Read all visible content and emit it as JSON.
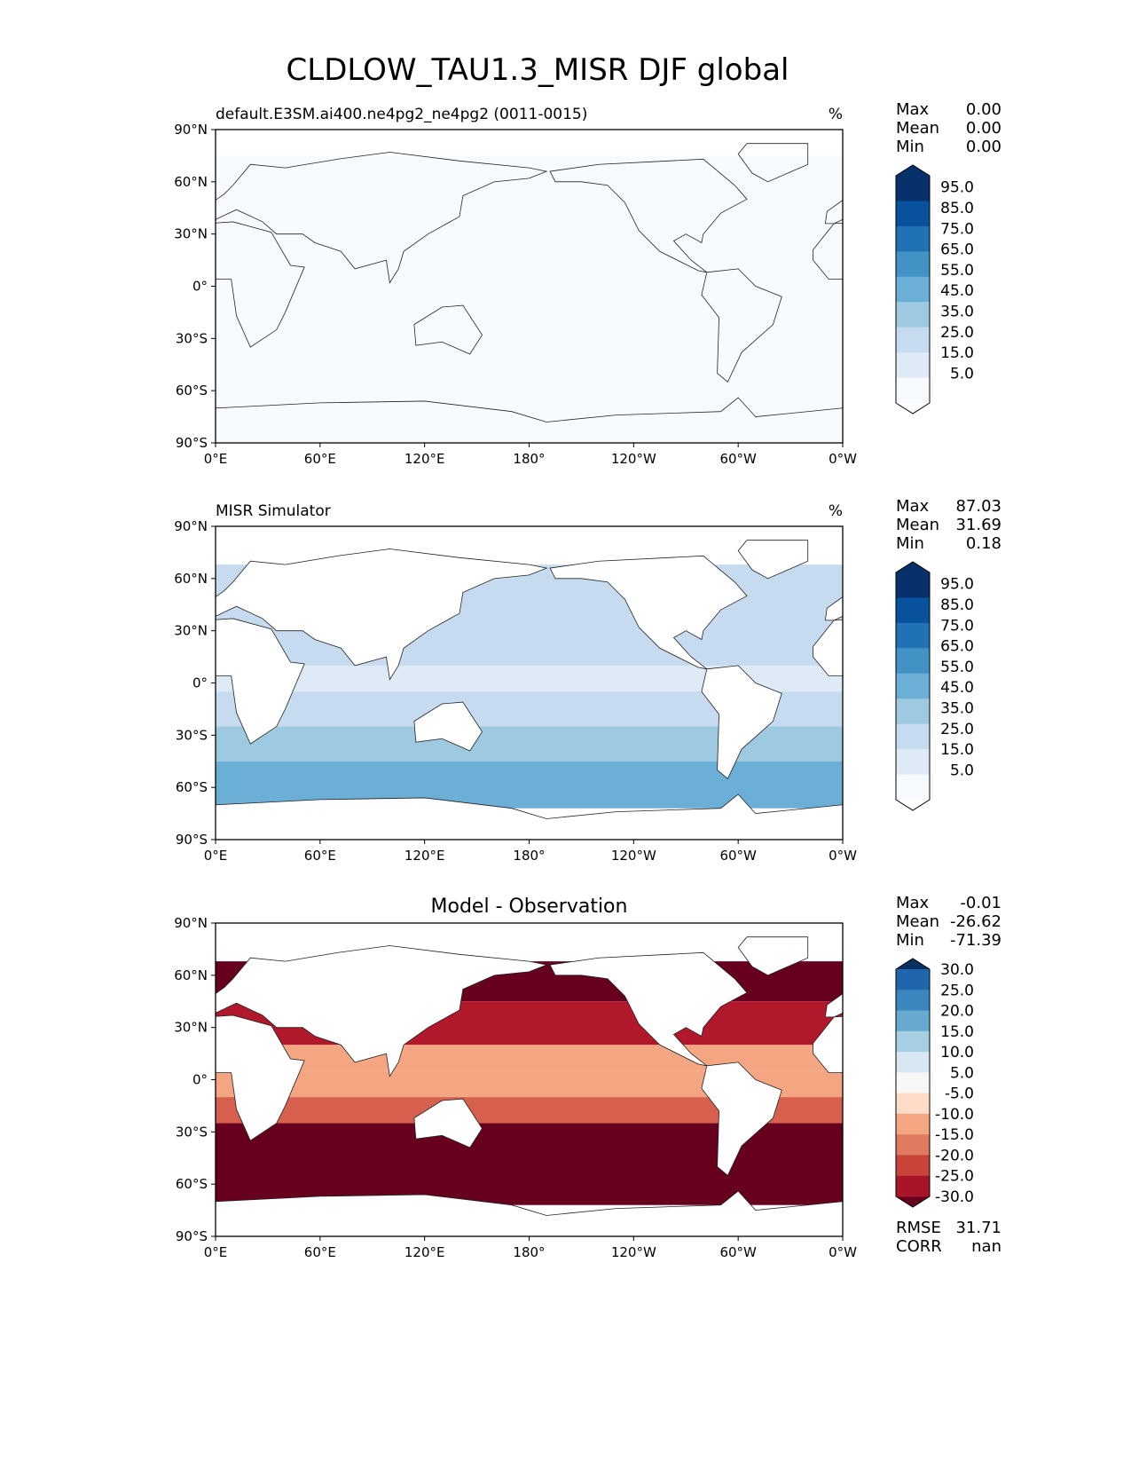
{
  "chart_data": [
    {
      "type": "heatmap",
      "title": "default.E3SM.ai400.ne4pg2_ne4pg2 (0011-0015)",
      "units": "%",
      "stats": {
        "Max": "0.00",
        "Mean": "0.00",
        "Min": "0.00"
      },
      "colorbar": {
        "labels": [
          "95.0",
          "85.0",
          "75.0",
          "65.0",
          "55.0",
          "45.0",
          "35.0",
          "25.0",
          "15.0",
          "5.0"
        ],
        "colors": [
          "#08306b",
          "#08519c",
          "#2171b5",
          "#4292c6",
          "#6baed6",
          "#9ecae1",
          "#c6dbef",
          "#deebf7",
          "#f7fbff"
        ],
        "extend_high": "#08306b",
        "extend_low": "#ffffff"
      },
      "fill": "all-low"
    },
    {
      "type": "heatmap",
      "title": "MISR Simulator",
      "units": "%",
      "stats": {
        "Max": "87.03",
        "Mean": "31.69",
        "Min": "0.18"
      },
      "colorbar": {
        "labels": [
          "95.0",
          "85.0",
          "75.0",
          "65.0",
          "55.0",
          "45.0",
          "35.0",
          "25.0",
          "15.0",
          "5.0"
        ],
        "colors": [
          "#08306b",
          "#08519c",
          "#2171b5",
          "#4292c6",
          "#6baed6",
          "#9ecae1",
          "#c6dbef",
          "#deebf7",
          "#f7fbff"
        ],
        "extend_high": "#08306b",
        "extend_low": "#ffffff"
      },
      "fill": "obs"
    },
    {
      "type": "heatmap",
      "title": "Model - Observation",
      "units": "",
      "stats": {
        "Max": "-0.01",
        "Mean": "-26.62",
        "Min": "-71.39"
      },
      "extra_stats": {
        "RMSE": "31.71",
        "CORR": "nan"
      },
      "colorbar": {
        "labels": [
          "30.0",
          "25.0",
          "20.0",
          "15.0",
          "10.0",
          "5.0",
          "-5.0",
          "-10.0",
          "-15.0",
          "-20.0",
          "-25.0",
          "-30.0"
        ],
        "colors": [
          "#2166ac",
          "#3a87bf",
          "#67a9cf",
          "#a6cfe4",
          "#d6e7f1",
          "#f7f7f7",
          "#fddbc7",
          "#f4a582",
          "#e07b62",
          "#c8443b",
          "#a81529"
        ],
        "extend_high": "#053061",
        "extend_low": "#67001f"
      },
      "fill": "diff"
    }
  ],
  "suptitle": "CLDLOW_TAU1.3_MISR DJF global",
  "xticks": [
    "0°E",
    "60°E",
    "120°E",
    "180°",
    "120°W",
    "60°W",
    "0°W"
  ],
  "yticks": [
    "90°N",
    "60°N",
    "30°N",
    "0°",
    "30°S",
    "60°S",
    "90°S"
  ]
}
